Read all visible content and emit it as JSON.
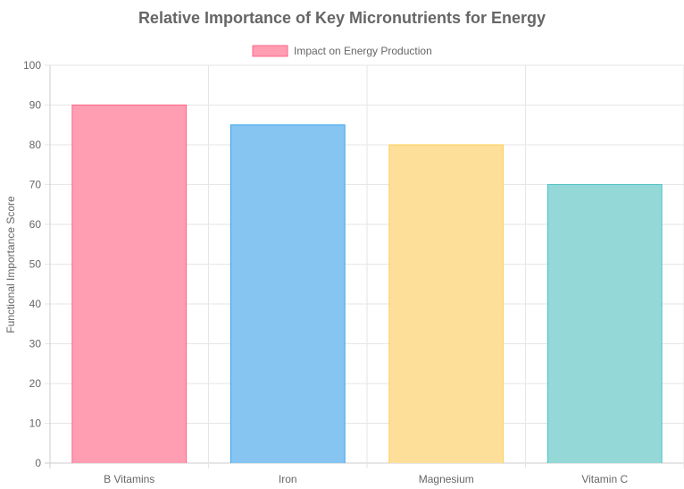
{
  "chart_data": {
    "type": "bar",
    "title": "Relative Importance of Key Micronutrients for Energy",
    "categories": [
      "B Vitamins",
      "Iron",
      "Magnesium",
      "Vitamin C"
    ],
    "series": [
      {
        "name": "Impact on Energy Production",
        "values": [
          90,
          85,
          80,
          70
        ]
      }
    ],
    "xlabel": "",
    "ylabel": "Functional Importance Score",
    "ylim": [
      0,
      100
    ],
    "yticks": [
      0,
      10,
      20,
      30,
      40,
      50,
      60,
      70,
      80,
      90,
      100
    ],
    "grid": true,
    "legend_position": "top",
    "bar_fill_colors": [
      "#ff9eb3",
      "#86c5f1",
      "#fddf99",
      "#94d8d8"
    ],
    "bar_border_colors": [
      "#ff6384",
      "#36a2eb",
      "#ffce56",
      "#4bc0c0"
    ]
  }
}
